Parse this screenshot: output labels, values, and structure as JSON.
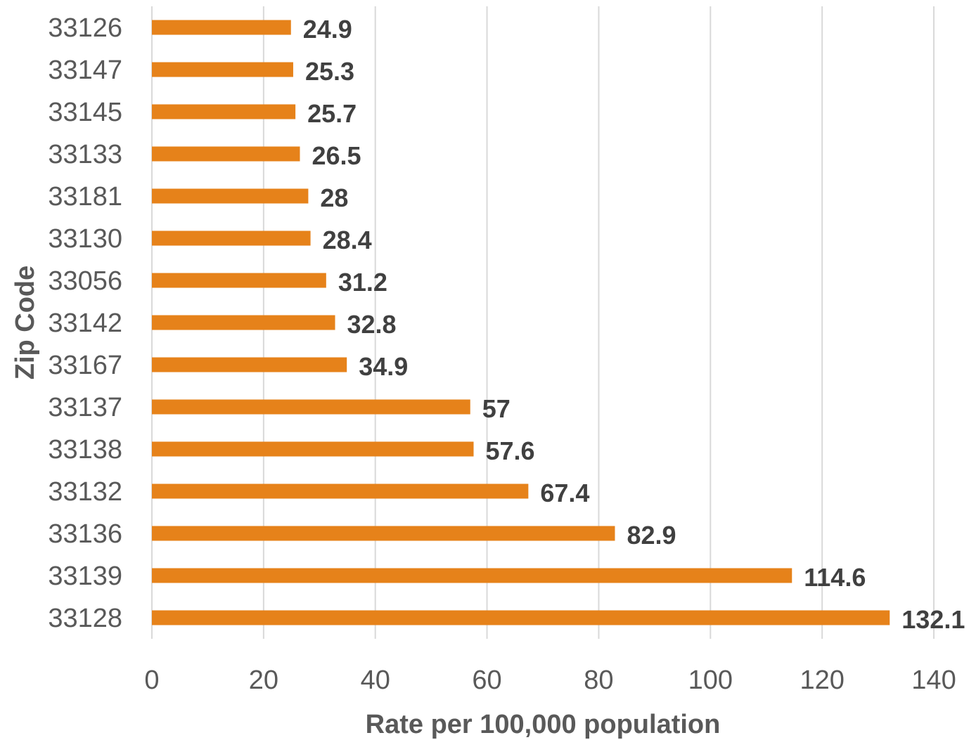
{
  "chart_data": {
    "type": "bar",
    "orientation": "horizontal",
    "categories": [
      "33126",
      "33147",
      "33145",
      "33133",
      "33181",
      "33130",
      "33056",
      "33142",
      "33167",
      "33137",
      "33138",
      "33132",
      "33136",
      "33139",
      "33128"
    ],
    "values": [
      24.9,
      25.3,
      25.7,
      26.5,
      28,
      28.4,
      31.2,
      32.8,
      34.9,
      57,
      57.6,
      67.4,
      82.9,
      114.6,
      132.1
    ],
    "data_labels": [
      "24.9",
      "25.3",
      "25.7",
      "26.5",
      "28",
      "28.4",
      "31.2",
      "32.8",
      "34.9",
      "57",
      "57.6",
      "67.4",
      "82.9",
      "114.6",
      "132.1"
    ],
    "title": "",
    "xlabel": "Rate per 100,000 population",
    "ylabel": "Zip Code",
    "xlim": [
      0,
      140
    ],
    "x_ticks": [
      "0",
      "20",
      "40",
      "60",
      "80",
      "100",
      "120",
      "140"
    ],
    "grid": "vertical",
    "legend": "none",
    "bar_color": "#E6821A",
    "grid_color": "#D9D9D9",
    "tick_label_color": "#595959",
    "data_label_color": "#404040"
  }
}
